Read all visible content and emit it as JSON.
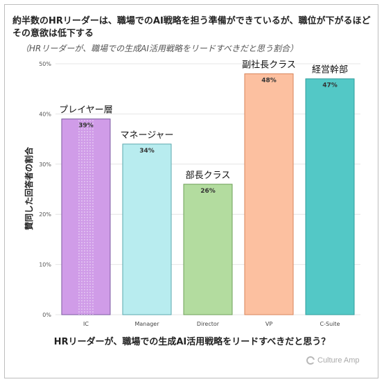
{
  "chart_data": {
    "type": "bar",
    "title": "約半数のHRリーダーは、職場でのAI戦略を担う準備ができているが、職位が下がるほどその意欲は低下する",
    "subtitle": "（HRリーダーが、職場での生成AI活用戦略をリードすべきだと思う割合）",
    "xlabel": "HRリーダーが、職場での生成AI活用戦略をリードすべきだと思う？",
    "ylabel": "賛同した回答者の割合",
    "categories": [
      "IC",
      "Manager",
      "Director",
      "VP",
      "C-Suite"
    ],
    "segment_labels": [
      "プレイヤー層",
      "マネージャー",
      "部長クラス",
      "副社長クラス",
      "経営幹部"
    ],
    "values": [
      39,
      34,
      26,
      48,
      47
    ],
    "value_labels": [
      "39%",
      "34%",
      "26%",
      "48%",
      "47%"
    ],
    "ylim": [
      0,
      50
    ],
    "yticks": [
      0,
      10,
      20,
      30,
      40,
      50
    ],
    "ytick_labels": [
      "0%",
      "10%",
      "20%",
      "30%",
      "40%",
      "50%"
    ],
    "grid": true,
    "colors": {
      "fills": [
        "#d09ce8",
        "#b8ecef",
        "#b3dc9f",
        "#fcc0a0",
        "#53c8c6"
      ],
      "strokes": [
        "#7b5aa0",
        "#5aa7ad",
        "#6ea058",
        "#d9855a",
        "#2f9e9c"
      ]
    }
  },
  "branding": {
    "logo_text": "Culture Amp",
    "logo_icon": "culture-amp-logo-icon"
  }
}
